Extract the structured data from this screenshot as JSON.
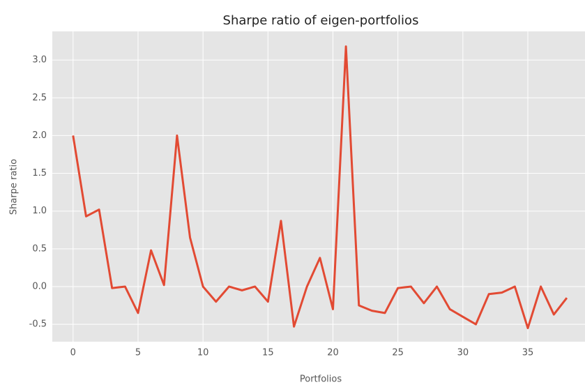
{
  "chart_data": {
    "type": "line",
    "title": "Sharpe ratio of eigen-portfolios",
    "x_label": "Portfolios",
    "y_label": "Sharpe ratio",
    "x": [
      0,
      1,
      2,
      3,
      4,
      5,
      6,
      7,
      8,
      9,
      10,
      11,
      12,
      13,
      14,
      15,
      16,
      17,
      18,
      19,
      20,
      21,
      22,
      23,
      24,
      25,
      26,
      27,
      28,
      29,
      30,
      31,
      32,
      33,
      34,
      35,
      36,
      37,
      38
    ],
    "series": [
      {
        "name": "Sharpe ratio",
        "color": "#e24a33",
        "values": [
          2.0,
          0.93,
          1.02,
          -0.02,
          0.0,
          -0.35,
          0.48,
          0.02,
          2.0,
          0.65,
          0.0,
          -0.2,
          0.0,
          -0.05,
          0.0,
          -0.2,
          0.87,
          -0.53,
          0.0,
          0.38,
          -0.3,
          3.18,
          -0.25,
          -0.32,
          -0.35,
          -0.02,
          0.0,
          -0.22,
          0.0,
          -0.3,
          -0.4,
          -0.5,
          -0.1,
          -0.08,
          0.0,
          -0.55,
          0.0,
          -0.37,
          -0.15
        ]
      }
    ],
    "xlim": [
      -1.6,
      39.4
    ],
    "xticks": [
      0,
      5,
      10,
      15,
      20,
      25,
      30,
      35
    ],
    "ylim": [
      -0.73,
      3.38
    ],
    "yticks": [
      -0.5,
      {
        "value": 0,
        "label": "0.0"
      },
      0.5,
      {
        "value": 1,
        "label": "1.0"
      },
      1.5,
      {
        "value": 2,
        "label": "2.0"
      },
      2.5,
      {
        "value": 3,
        "label": "3.0"
      }
    ],
    "grid": true
  }
}
